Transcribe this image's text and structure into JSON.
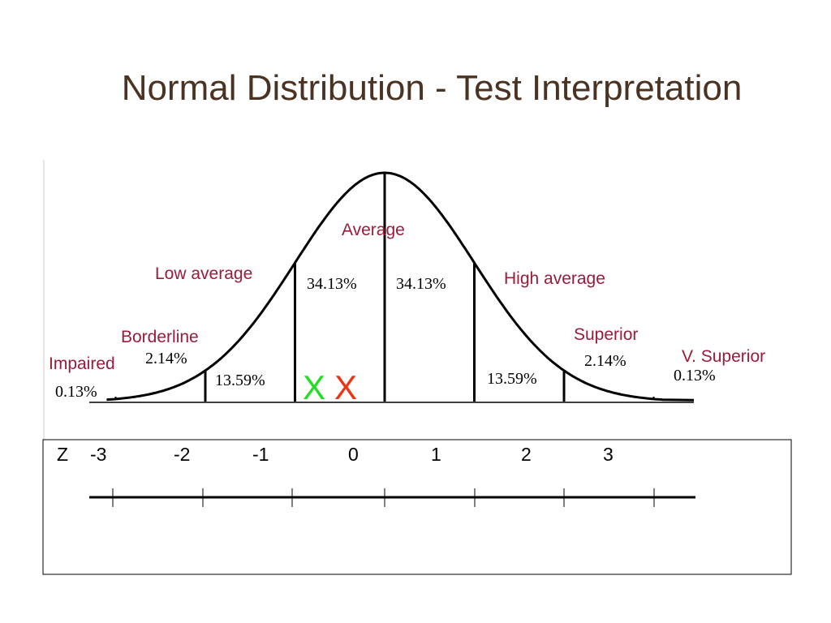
{
  "slide": {
    "title": "Normal Distribution - Test Interpretation"
  },
  "colors": {
    "title": "#4a3322",
    "category_label": "#9b1b3a",
    "marker_green": "#22dd22",
    "marker_red": "#ee3311",
    "line": "#000000"
  },
  "categories": [
    {
      "key": "impaired",
      "label": "Impaired"
    },
    {
      "key": "borderline",
      "label": "Borderline"
    },
    {
      "key": "low_average",
      "label": "Low average"
    },
    {
      "key": "average",
      "label": "Average"
    },
    {
      "key": "high_average",
      "label": "High average"
    },
    {
      "key": "superior",
      "label": "Superior"
    },
    {
      "key": "very_superior",
      "label": "V. Superior"
    }
  ],
  "percentages": {
    "far_left": "0.13%",
    "left_2": "2.14%",
    "left_1": "13.59%",
    "center_left": "34.13%",
    "center_right": "34.13%",
    "right_1": "13.59%",
    "right_2": "2.14%",
    "far_right": "0.13%"
  },
  "markers": {
    "green": "X",
    "red": "X"
  },
  "z_axis": {
    "label": "Z",
    "ticks": [
      "-3",
      "-2",
      "-1",
      "0",
      "1",
      "2",
      "3"
    ]
  }
}
